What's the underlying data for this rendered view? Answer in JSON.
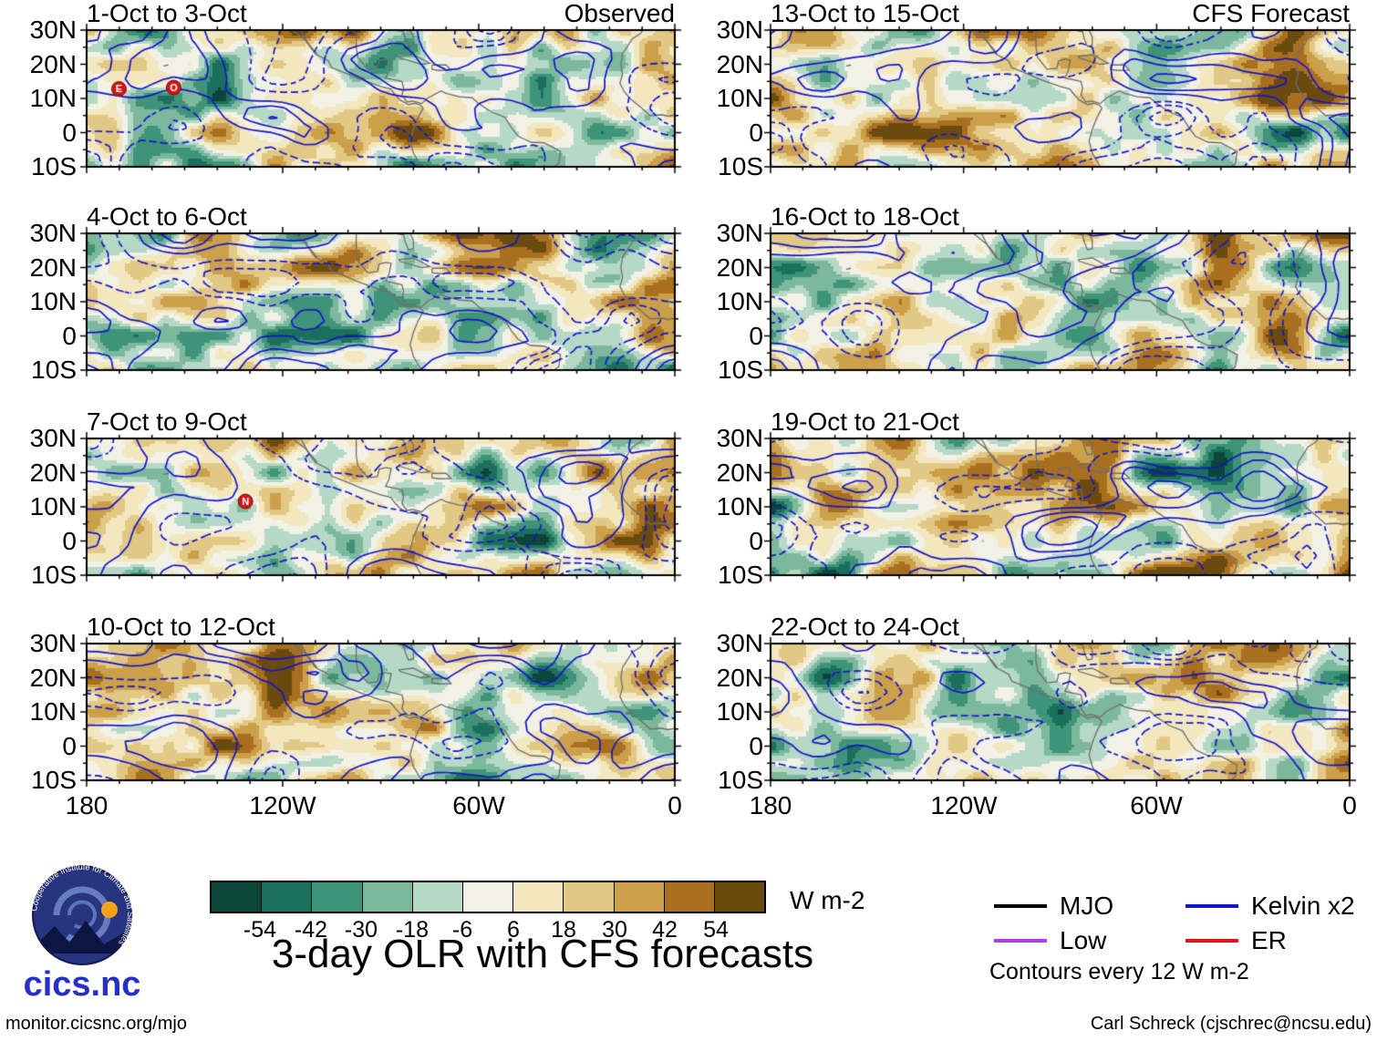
{
  "main_title": "3-day OLR with CFS forecasts",
  "panels": [
    {
      "title": "1-Oct to 3-Oct",
      "heading": "Observed",
      "markers": [
        {
          "label": "E",
          "u": 0.055,
          "v": 0.43
        },
        {
          "label": "O",
          "u": 0.148,
          "v": 0.42
        }
      ]
    },
    {
      "title": "13-Oct to 15-Oct",
      "heading": "CFS Forecast",
      "markers": []
    },
    {
      "title": "4-Oct to 6-Oct",
      "markers": []
    },
    {
      "title": "16-Oct to 18-Oct",
      "markers": []
    },
    {
      "title": "7-Oct to 9-Oct",
      "markers": [
        {
          "label": "N",
          "u": 0.27,
          "v": 0.46
        }
      ]
    },
    {
      "title": "19-Oct to 21-Oct",
      "markers": []
    },
    {
      "title": "10-Oct to 12-Oct",
      "markers": []
    },
    {
      "title": "22-Oct to 24-Oct",
      "markers": []
    }
  ],
  "axes": {
    "y_ticks": [
      "30N",
      "20N",
      "10N",
      "0",
      "10S"
    ],
    "x_ticks": [
      "180",
      "120W",
      "60W",
      "0"
    ]
  },
  "colorbar": {
    "tick_labels": [
      "-54",
      "-42",
      "-30",
      "-18",
      "-6",
      "6",
      "18",
      "30",
      "42",
      "54"
    ],
    "units": "W m-2",
    "colors": [
      "#0d453a",
      "#1c6f5c",
      "#3f9378",
      "#7cb89d",
      "#b5d9c6",
      "#f2f1e6",
      "#f3e7c0",
      "#e2c885",
      "#cc9f4a",
      "#a96f21",
      "#6b4a10"
    ]
  },
  "legend": {
    "items": [
      {
        "label": "MJO",
        "color": "#000000"
      },
      {
        "label": "Low",
        "color": "#b43be0"
      },
      {
        "label": "Kelvin x2",
        "color": "#1414cd"
      },
      {
        "label": "ER",
        "color": "#e31414"
      }
    ],
    "note": "Contours every 12 W m-2"
  },
  "footer": {
    "left": "monitor.cicsnc.org/mjo",
    "right": "Carl Schreck (cjschrec@ncsu.edu)"
  },
  "logo": {
    "name": "cics.nc",
    "ring_text": "Cooperative Institute for Climate and Satellites"
  },
  "chart_data": {
    "type": "heatmap",
    "title": "3-day OLR with CFS forecasts",
    "quantity": "3-day mean OLR anomaly (filled) with equatorial wave contours",
    "units": "W m-2",
    "fill_levels": [
      -54,
      -42,
      -30,
      -18,
      -6,
      6,
      18,
      30,
      42,
      54
    ],
    "contour_interval": "Contours every 12 W m-2",
    "x": {
      "ticks": [
        "180",
        "120W",
        "60W",
        "0"
      ],
      "lon_range_deg": [
        -180,
        0
      ]
    },
    "y": {
      "ticks": [
        "30N",
        "20N",
        "10N",
        "0",
        "10S"
      ],
      "lat_range_deg": [
        -10,
        30
      ]
    },
    "panel_grid": {
      "rows": 4,
      "cols": 2
    },
    "columns": [
      {
        "heading": "Observed",
        "panels": [
          "1-Oct to 3-Oct",
          "4-Oct to 6-Oct",
          "7-Oct to 9-Oct",
          "10-Oct to 12-Oct"
        ]
      },
      {
        "heading": "CFS Forecast",
        "panels": [
          "13-Oct to 15-Oct",
          "16-Oct to 18-Oct",
          "19-Oct to 21-Oct",
          "22-Oct to 24-Oct"
        ]
      }
    ],
    "wave_legend": [
      {
        "name": "MJO",
        "color": "black"
      },
      {
        "name": "Low",
        "color": "purple"
      },
      {
        "name": "Kelvin x2",
        "color": "blue"
      },
      {
        "name": "ER",
        "color": "red"
      }
    ],
    "storm_markers": [
      {
        "panel": "1-Oct to 3-Oct",
        "labels": [
          "E",
          "O"
        ]
      },
      {
        "panel": "7-Oct to 9-Oct",
        "labels": [
          "N"
        ]
      }
    ],
    "colormap": "dark teal (negative, enhanced convection) through white to dark brown (positive, suppressed)"
  }
}
